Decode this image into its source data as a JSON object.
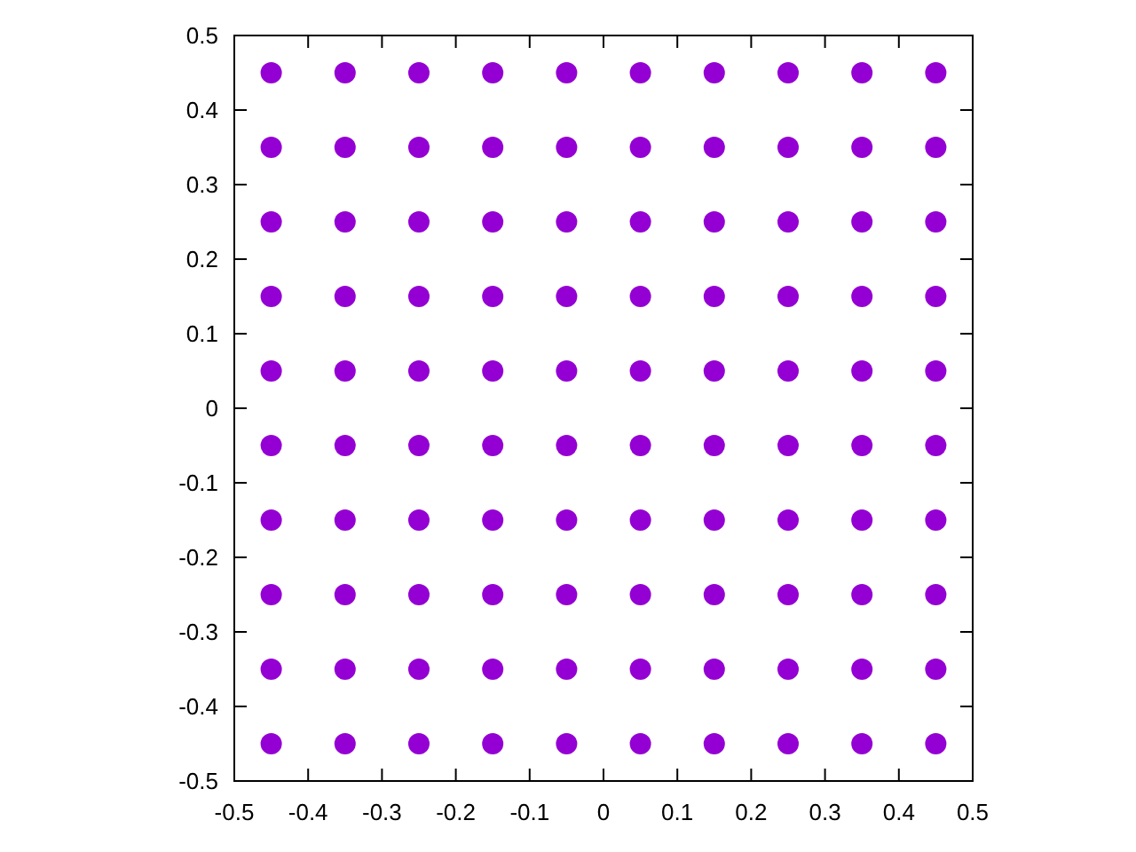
{
  "chart_data": {
    "type": "scatter",
    "xlim": [
      -0.5,
      0.5
    ],
    "ylim": [
      -0.5,
      0.5
    ],
    "xticks": [
      -0.5,
      -0.4,
      -0.3,
      -0.2,
      -0.1,
      0,
      0.1,
      0.2,
      0.3,
      0.4,
      0.5
    ],
    "yticks": [
      -0.5,
      -0.4,
      -0.3,
      -0.2,
      -0.1,
      0,
      0.1,
      0.2,
      0.3,
      0.4,
      0.5
    ],
    "marker": "circle",
    "grid": false,
    "series": [
      {
        "color": "#9400d3",
        "x": [
          -0.45,
          -0.35,
          -0.25,
          -0.15,
          -0.05,
          0.05,
          0.15,
          0.25,
          0.35,
          0.45,
          -0.45,
          -0.35,
          -0.25,
          -0.15,
          -0.05,
          0.05,
          0.15,
          0.25,
          0.35,
          0.45,
          -0.45,
          -0.35,
          -0.25,
          -0.15,
          -0.05,
          0.05,
          0.15,
          0.25,
          0.35,
          0.45,
          -0.45,
          -0.35,
          -0.25,
          -0.15,
          -0.05,
          0.05,
          0.15,
          0.25,
          0.35,
          0.45,
          -0.45,
          -0.35,
          -0.25,
          -0.15,
          -0.05,
          0.05,
          0.15,
          0.25,
          0.35,
          0.45,
          -0.45,
          -0.35,
          -0.25,
          -0.15,
          -0.05,
          0.05,
          0.15,
          0.25,
          0.35,
          0.45,
          -0.45,
          -0.35,
          -0.25,
          -0.15,
          -0.05,
          0.05,
          0.15,
          0.25,
          0.35,
          0.45,
          -0.45,
          -0.35,
          -0.25,
          -0.15,
          -0.05,
          0.05,
          0.15,
          0.25,
          0.35,
          0.45,
          -0.45,
          -0.35,
          -0.25,
          -0.15,
          -0.05,
          0.05,
          0.15,
          0.25,
          0.35,
          0.45,
          -0.45,
          -0.35,
          -0.25,
          -0.15,
          -0.05,
          0.05,
          0.15,
          0.25,
          0.35,
          0.45
        ],
        "values": [
          0.45,
          0.45,
          0.45,
          0.45,
          0.45,
          0.45,
          0.45,
          0.45,
          0.45,
          0.45,
          0.35,
          0.35,
          0.35,
          0.35,
          0.35,
          0.35,
          0.35,
          0.35,
          0.35,
          0.35,
          0.25,
          0.25,
          0.25,
          0.25,
          0.25,
          0.25,
          0.25,
          0.25,
          0.25,
          0.25,
          0.15,
          0.15,
          0.15,
          0.15,
          0.15,
          0.15,
          0.15,
          0.15,
          0.15,
          0.15,
          0.05,
          0.05,
          0.05,
          0.05,
          0.05,
          0.05,
          0.05,
          0.05,
          0.05,
          0.05,
          -0.05,
          -0.05,
          -0.05,
          -0.05,
          -0.05,
          -0.05,
          -0.05,
          -0.05,
          -0.05,
          -0.05,
          -0.15,
          -0.15,
          -0.15,
          -0.15,
          -0.15,
          -0.15,
          -0.15,
          -0.15,
          -0.15,
          -0.15,
          -0.25,
          -0.25,
          -0.25,
          -0.25,
          -0.25,
          -0.25,
          -0.25,
          -0.25,
          -0.25,
          -0.25,
          -0.35,
          -0.35,
          -0.35,
          -0.35,
          -0.35,
          -0.35,
          -0.35,
          -0.35,
          -0.35,
          -0.35,
          -0.45,
          -0.45,
          -0.45,
          -0.45,
          -0.45,
          -0.45,
          -0.45,
          -0.45,
          -0.45,
          -0.45
        ]
      }
    ]
  }
}
